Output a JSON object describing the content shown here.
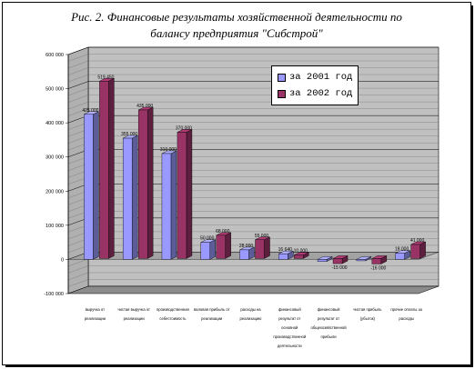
{
  "title_line1": "Рис. 2. Финансовые результаты хозяйственной деятельности по",
  "title_line2": "балансу предприятия \"Сибстрой\"",
  "colors": {
    "s2001": "#9999ff",
    "s2002": "#993366",
    "wall": "#c0c0c0",
    "floor": "#a0a0a0"
  },
  "chart_data": {
    "type": "bar",
    "categories": [
      [
        "выручка от",
        "реализации"
      ],
      [
        "чистая выручка от",
        "реализации"
      ],
      [
        "производственная",
        "себестоимость"
      ],
      [
        "валовая прибыль от",
        "реализации"
      ],
      [
        "расходы на",
        "реализацию"
      ],
      [
        "финансовый",
        "результат от",
        "основной",
        "производственной",
        "деятельности"
      ],
      [
        "финансовый",
        "результат от",
        "общехозяйственной",
        "прибыли"
      ],
      [
        "чистая прибыль",
        "(убыток)"
      ],
      [
        "прочие оплаты за",
        "расходы"
      ]
    ],
    "series": [
      {
        "name": "за 2001 год",
        "values": [
          425000,
          355000,
          310000,
          50000,
          28000,
          16640,
          -6000,
          -4000,
          18000
        ],
        "labels": [
          "425 000",
          "355 000",
          "310 000",
          "50 000",
          "28 000",
          "16 640",
          "",
          "",
          "18 000"
        ]
      },
      {
        "name": "за 2002 год",
        "values": [
          519450,
          435000,
          370000,
          68000,
          55000,
          10000,
          -15000,
          -16000,
          41000
        ],
        "labels": [
          "519 450",
          "435 000",
          "370 000",
          "68 000",
          "55 000",
          "10 000",
          "-15 000",
          "-16 000",
          "41 000"
        ]
      }
    ],
    "yticks": [
      "600 000",
      "500 000",
      "400 000",
      "300 000",
      "200 000",
      "100 000",
      "0",
      "-100 000"
    ],
    "ylim": [
      -100000,
      600000
    ],
    "legend_position": "top-right",
    "grid": true
  }
}
